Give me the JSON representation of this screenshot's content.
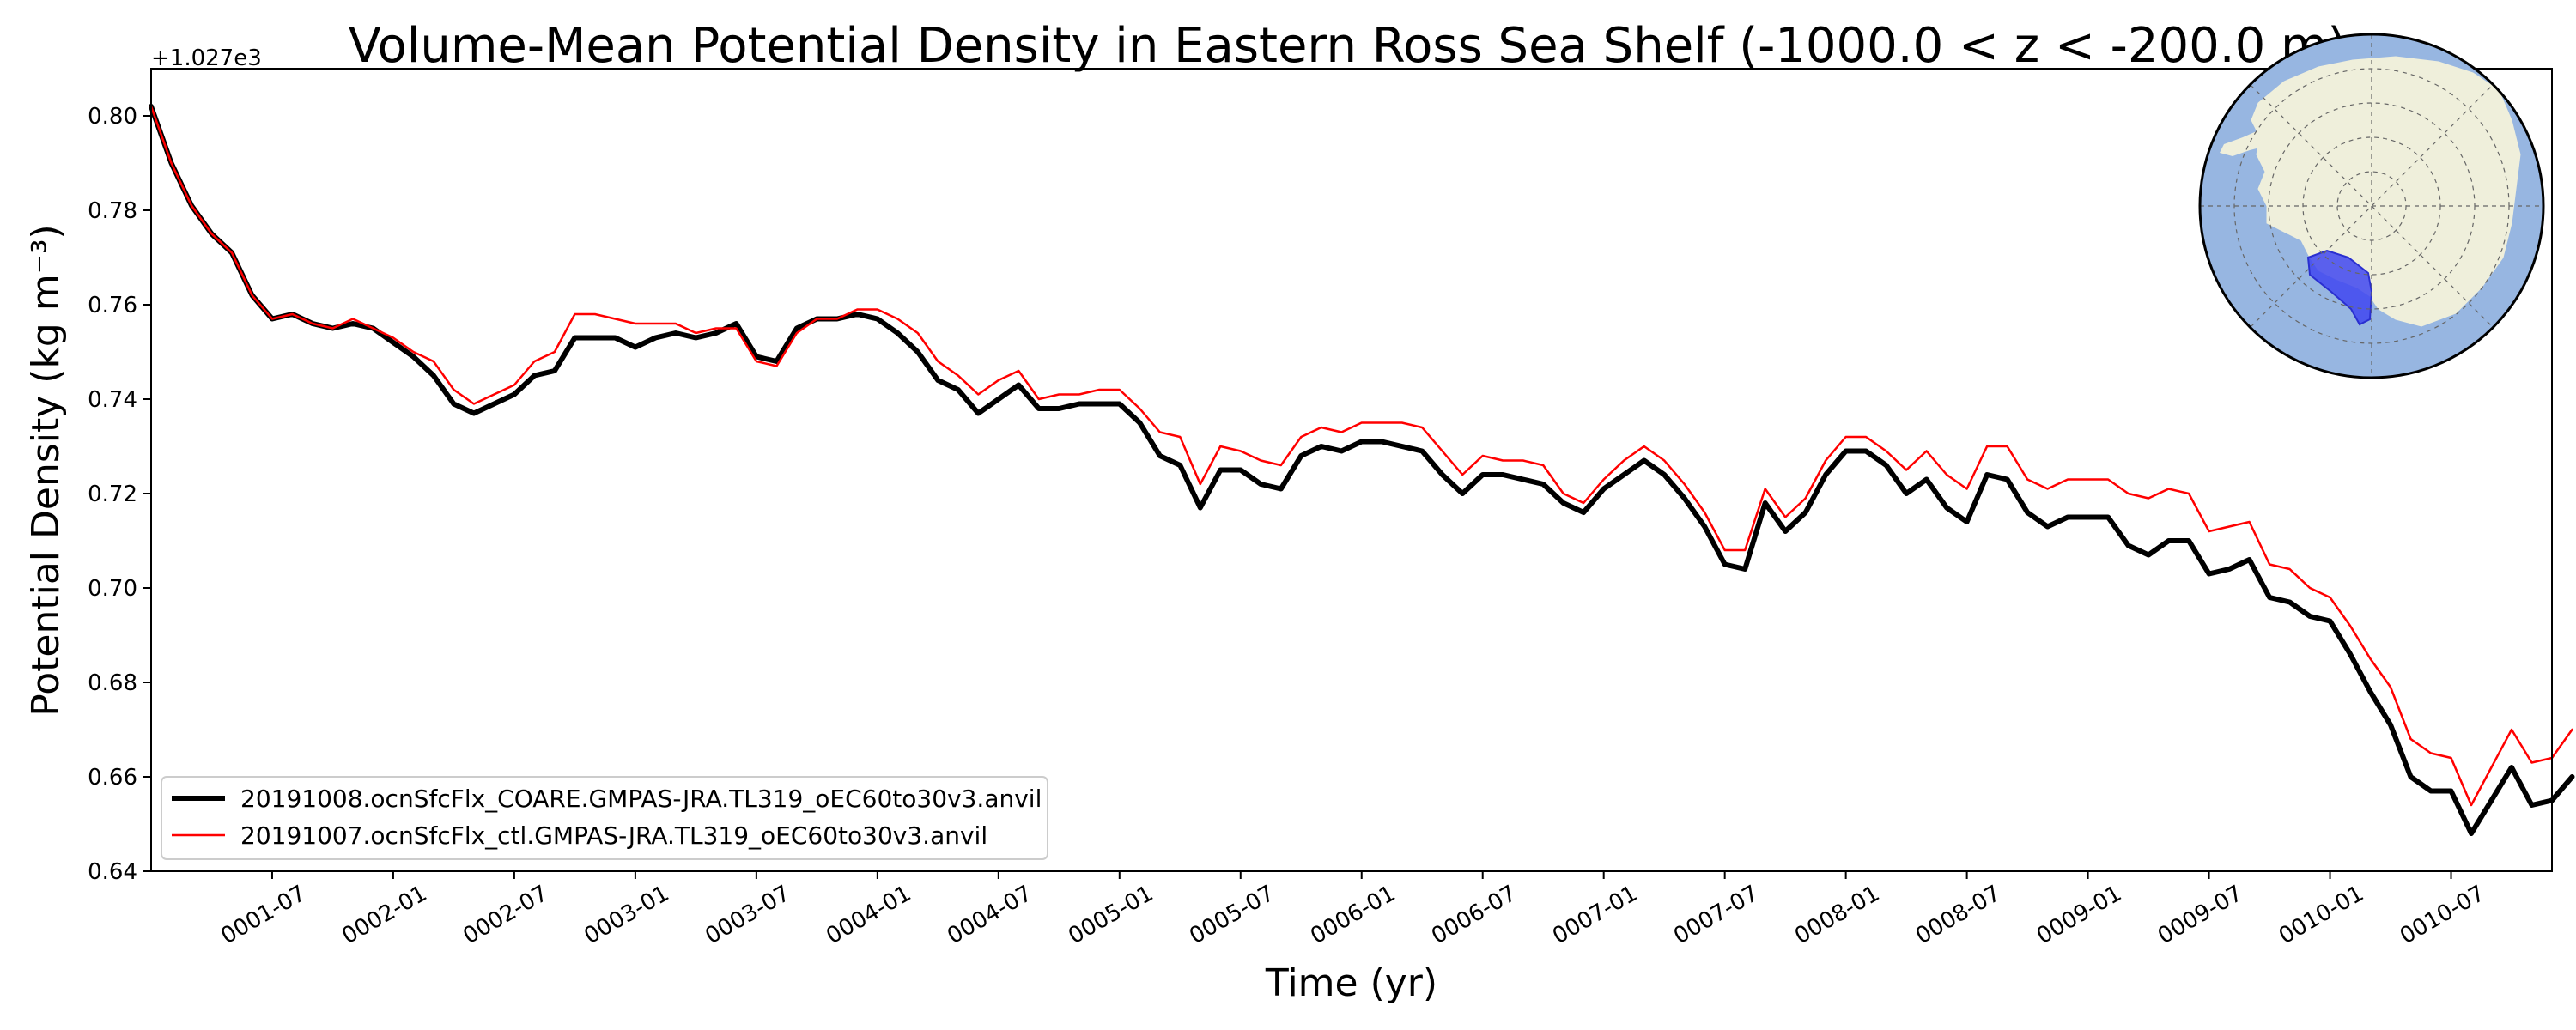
{
  "chart_data": {
    "type": "line",
    "title": "Volume-Mean Potential Density in Eastern Ross Sea Shelf (-1000.0 < z < -200.0 m)",
    "xlabel": "Time (yr)",
    "ylabel": "Potential Density (kg m⁻³)",
    "offset_text": "+1.027e3",
    "xlim": [
      0,
      119
    ],
    "ylim": [
      0.64,
      0.81
    ],
    "x_tick_positions": [
      6,
      12,
      18,
      24,
      30,
      36,
      42,
      48,
      54,
      60,
      66,
      72,
      78,
      84,
      90,
      96,
      102,
      108,
      114
    ],
    "x_tick_labels": [
      "0001-07",
      "0002-01",
      "0002-07",
      "0003-01",
      "0003-07",
      "0004-01",
      "0004-07",
      "0005-01",
      "0005-07",
      "0006-01",
      "0006-07",
      "0007-01",
      "0007-07",
      "0008-01",
      "0008-07",
      "0009-01",
      "0009-07",
      "0010-01",
      "0010-07"
    ],
    "y_ticks": [
      0.64,
      0.66,
      0.68,
      0.7,
      0.72,
      0.74,
      0.76,
      0.78,
      0.8
    ],
    "y_tick_labels": [
      "0.64",
      "0.66",
      "0.68",
      "0.70",
      "0.72",
      "0.74",
      "0.76",
      "0.78",
      "0.80"
    ],
    "legend_location": "lower-left",
    "inset": "Antarctic polar map with the Eastern Ross Sea Shelf region highlighted in blue",
    "series": [
      {
        "name": "20191008.ocnSfcFlx_COARE.GMPAS-JRA.TL319_oEC60to30v3.anvil",
        "color": "#000000",
        "linewidth": "thick",
        "values": [
          0.802,
          0.79,
          0.781,
          0.775,
          0.771,
          0.762,
          0.757,
          0.758,
          0.756,
          0.755,
          0.756,
          0.755,
          0.752,
          0.749,
          0.745,
          0.739,
          0.737,
          0.739,
          0.741,
          0.745,
          0.746,
          0.753,
          0.753,
          0.753,
          0.751,
          0.753,
          0.754,
          0.753,
          0.754,
          0.756,
          0.749,
          0.748,
          0.755,
          0.757,
          0.757,
          0.758,
          0.757,
          0.754,
          0.75,
          0.744,
          0.742,
          0.737,
          0.74,
          0.743,
          0.738,
          0.738,
          0.739,
          0.739,
          0.739,
          0.735,
          0.728,
          0.726,
          0.717,
          0.725,
          0.725,
          0.722,
          0.721,
          0.728,
          0.73,
          0.729,
          0.731,
          0.731,
          0.73,
          0.729,
          0.724,
          0.72,
          0.724,
          0.724,
          0.723,
          0.722,
          0.718,
          0.716,
          0.721,
          0.724,
          0.727,
          0.724,
          0.719,
          0.713,
          0.705,
          0.704,
          0.718,
          0.712,
          0.716,
          0.724,
          0.729,
          0.729,
          0.726,
          0.72,
          0.723,
          0.717,
          0.714,
          0.724,
          0.723,
          0.716,
          0.713,
          0.715,
          0.715,
          0.715,
          0.709,
          0.707,
          0.71,
          0.71,
          0.703,
          0.704,
          0.706,
          0.698,
          0.697,
          0.694,
          0.693,
          0.686,
          0.678,
          0.671,
          0.66,
          0.657,
          0.657,
          0.648,
          0.655,
          0.662,
          0.654,
          0.655,
          0.66
        ]
      },
      {
        "name": "20191007.ocnSfcFlx_ctl.GMPAS-JRA.TL319_oEC60to30v3.anvil",
        "color": "#ff0000",
        "linewidth": "thin",
        "values": [
          0.802,
          0.79,
          0.781,
          0.775,
          0.771,
          0.762,
          0.757,
          0.758,
          0.756,
          0.755,
          0.757,
          0.755,
          0.753,
          0.75,
          0.748,
          0.742,
          0.739,
          0.741,
          0.743,
          0.748,
          0.75,
          0.758,
          0.758,
          0.757,
          0.756,
          0.756,
          0.756,
          0.754,
          0.755,
          0.755,
          0.748,
          0.747,
          0.754,
          0.757,
          0.757,
          0.759,
          0.759,
          0.757,
          0.754,
          0.748,
          0.745,
          0.741,
          0.744,
          0.746,
          0.74,
          0.741,
          0.741,
          0.742,
          0.742,
          0.738,
          0.733,
          0.732,
          0.722,
          0.73,
          0.729,
          0.727,
          0.726,
          0.732,
          0.734,
          0.733,
          0.735,
          0.735,
          0.735,
          0.734,
          0.729,
          0.724,
          0.728,
          0.727,
          0.727,
          0.726,
          0.72,
          0.718,
          0.723,
          0.727,
          0.73,
          0.727,
          0.722,
          0.716,
          0.708,
          0.708,
          0.721,
          0.715,
          0.719,
          0.727,
          0.732,
          0.732,
          0.729,
          0.725,
          0.729,
          0.724,
          0.721,
          0.73,
          0.73,
          0.723,
          0.721,
          0.723,
          0.723,
          0.723,
          0.72,
          0.719,
          0.721,
          0.72,
          0.712,
          0.713,
          0.714,
          0.705,
          0.704,
          0.7,
          0.698,
          0.692,
          0.685,
          0.679,
          0.668,
          0.665,
          0.664,
          0.654,
          0.662,
          0.67,
          0.663,
          0.664,
          0.67
        ]
      }
    ]
  }
}
